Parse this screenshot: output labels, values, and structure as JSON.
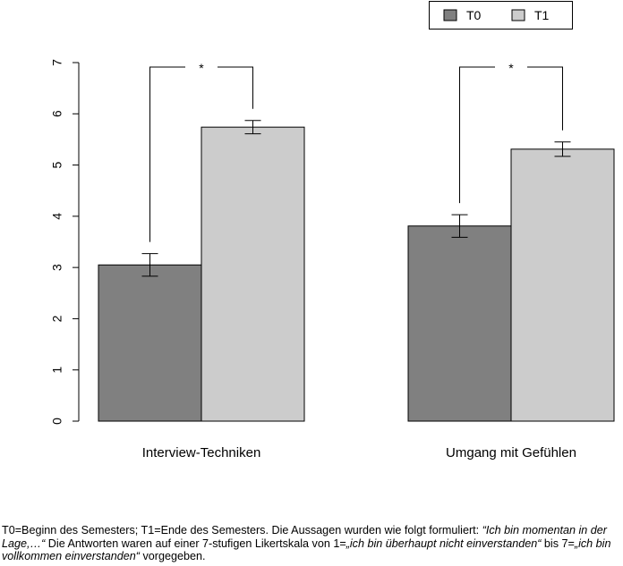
{
  "chart_data": {
    "type": "bar",
    "categories": [
      "Interview-Techniken",
      "Umgang mit Gefühlen"
    ],
    "series": [
      {
        "name": "T0",
        "values": [
          3.05,
          3.81
        ],
        "error_low": [
          2.83,
          3.59
        ],
        "error_high": [
          3.27,
          4.03
        ],
        "color": "#808080"
      },
      {
        "name": "T1",
        "values": [
          5.74,
          5.31
        ],
        "error_low": [
          5.61,
          5.17
        ],
        "error_high": [
          5.87,
          5.45
        ],
        "color": "#cccccc"
      }
    ],
    "ylim": [
      0,
      7
    ],
    "yticks": [
      "0",
      "1",
      "2",
      "3",
      "4",
      "5",
      "6",
      "7"
    ],
    "significance_marker": "*",
    "legend_position": "top-right",
    "grid": false
  },
  "caption": {
    "part1": "T0=Beginn des Semesters; T1=Ende des Semesters. Die Aussagen wurden wie folgt formuliert: ",
    "quote1": "“Ich bin momentan in der Lage,…“",
    "part2": " Die Antworten waren auf einer 7-stufigen Likertskala von 1=",
    "quote2": "„ich bin überhaupt nicht einverstanden“",
    "part3": "  bis 7=",
    "quote3": "„ich bin vollkommen einverstanden“",
    "part4": " vorgegeben."
  }
}
